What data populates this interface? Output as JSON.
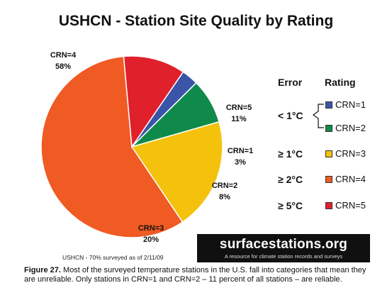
{
  "chart_data": {
    "type": "pie",
    "title": "USHCN - Station Site Quality by Rating",
    "slices": [
      {
        "name": "CRN=1",
        "label": "CRN=1",
        "pct_label": "3%",
        "value": 3,
        "color": "#3a55a8"
      },
      {
        "name": "CRN=2",
        "label": "CRN=2",
        "pct_label": "8%",
        "value": 8,
        "color": "#0f8a4a"
      },
      {
        "name": "CRN=3",
        "label": "CRN=3",
        "pct_label": "20%",
        "value": 20,
        "color": "#f4c20d"
      },
      {
        "name": "CRN=4",
        "label": "CRN=4",
        "pct_label": "58%",
        "value": 58,
        "color": "#f05a23"
      },
      {
        "name": "CRN=5",
        "label": "CRN=5",
        "pct_label": "11%",
        "value": 11,
        "color": "#e0202a"
      }
    ]
  },
  "legend": {
    "error_header": "Error",
    "rating_header": "Rating",
    "groups": [
      {
        "error": "< 1°C"
      },
      {
        "error": "≥ 1°C"
      },
      {
        "error": "≥ 2°C"
      },
      {
        "error": "≥ 5°C"
      }
    ]
  },
  "logo": {
    "main_part1": "surface",
    "main_part2": "stations.org",
    "tagline": "A resource for climate station records and surveys"
  },
  "survey_note": "USHCN - 70% surveyed as of 2/11/09",
  "caption": {
    "figure_label": "Figure 27.",
    "text": " Most of the surveyed temperature stations in the U.S. fall into categories that mean they are unreliable. Only stations in CRN=1 and CRN=2 – 11 percent of all stations – are reliable."
  }
}
